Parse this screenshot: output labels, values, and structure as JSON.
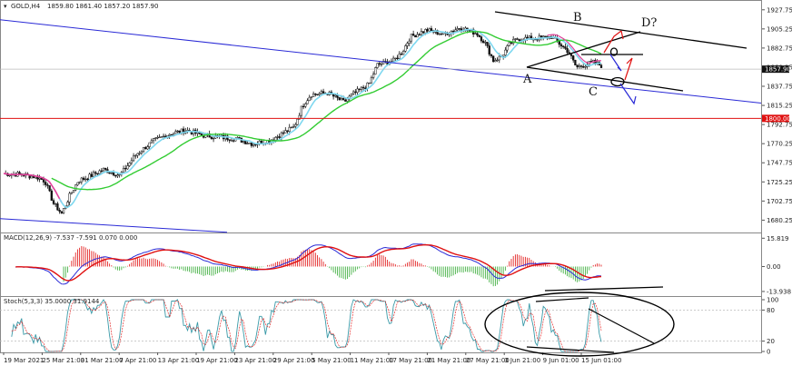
{
  "header": {
    "symbol_label": "GOLD,H4",
    "quote": "1859.80 1861.40 1857.20 1857.90"
  },
  "price_axis": {
    "ticks": [
      "1927.75",
      "1905.25",
      "1882.75",
      "1860.25",
      "1837.75",
      "1815.25",
      "1792.75",
      "1770.25",
      "1747.75",
      "1725.25",
      "1702.75",
      "1680.25"
    ],
    "current_price_label": "1857.90",
    "level_label": "1800.00"
  },
  "macd": {
    "label": "MACD(12,26,9) -7.537 -7.591 0.070 0.000",
    "ticks": [
      "15.819",
      "0.00",
      "-13.938"
    ]
  },
  "stoch": {
    "label": "Stoch(5,3,3) 35.0000 31.9144",
    "ticks": [
      "100",
      "80",
      "20",
      "0"
    ]
  },
  "time_axis": {
    "ticks": [
      "19 Mar 2021",
      "25 Mar 21:00",
      "31 Mar 21:00",
      "7 Apr 21:00",
      "13 Apr 21:00",
      "19 Apr 21:00",
      "23 Apr 21:00",
      "29 Apr 21:00",
      "5 May 21:00",
      "11 May 21:00",
      "17 May 21:00",
      "21 May 21:00",
      "27 May 21:00",
      "3 Jun 21:00",
      "9 Jun 01:00",
      "15 Jun 01:00"
    ]
  },
  "annotations": {
    "point_a": "A",
    "point_b": "B",
    "point_c": "C",
    "point_d": "D?"
  },
  "colors": {
    "candle": "#111111",
    "ma_fast": "#7fd8f0",
    "ma_slow": "#33cc33",
    "ma_pink": "#e0409a",
    "channel": "#2a2ad6",
    "level_red": "#e01010",
    "macd_main": "#2a2ad6",
    "macd_signal": "#e01010",
    "stoch_main": "#3a9aa8"
  },
  "chart_data": {
    "type": "candlestick",
    "symbol": "GOLD",
    "timeframe": "H4",
    "ohlc_last": {
      "open": 1859.8,
      "high": 1861.4,
      "low": 1857.2,
      "close": 1857.9
    },
    "price_range": [
      1670,
      1935
    ],
    "horizontal_level": 1800.0,
    "close_path": [
      [
        0,
        1735
      ],
      [
        4,
        1734
      ],
      [
        8,
        1731
      ],
      [
        10,
        1726
      ],
      [
        12,
        1700
      ],
      [
        14,
        1688
      ],
      [
        16,
        1710
      ],
      [
        18,
        1727
      ],
      [
        20,
        1730
      ],
      [
        24,
        1740
      ],
      [
        28,
        1733
      ],
      [
        32,
        1758
      ],
      [
        36,
        1773
      ],
      [
        40,
        1782
      ],
      [
        44,
        1786
      ],
      [
        48,
        1780
      ],
      [
        52,
        1778
      ],
      [
        56,
        1776
      ],
      [
        60,
        1770
      ],
      [
        64,
        1774
      ],
      [
        66,
        1779
      ],
      [
        70,
        1790
      ],
      [
        72,
        1815
      ],
      [
        74,
        1828
      ],
      [
        78,
        1830
      ],
      [
        82,
        1819
      ],
      [
        84,
        1828
      ],
      [
        88,
        1840
      ],
      [
        90,
        1863
      ],
      [
        94,
        1868
      ],
      [
        96,
        1878
      ],
      [
        98,
        1896
      ],
      [
        102,
        1904
      ],
      [
        106,
        1899
      ],
      [
        110,
        1907
      ],
      [
        114,
        1900
      ],
      [
        116,
        1889
      ],
      [
        118,
        1868
      ],
      [
        120,
        1873
      ],
      [
        122,
        1888
      ],
      [
        124,
        1894
      ],
      [
        128,
        1894
      ],
      [
        132,
        1896
      ],
      [
        136,
        1879
      ],
      [
        138,
        1860
      ],
      [
        142,
        1866
      ],
      [
        144,
        1862
      ]
    ]
  }
}
